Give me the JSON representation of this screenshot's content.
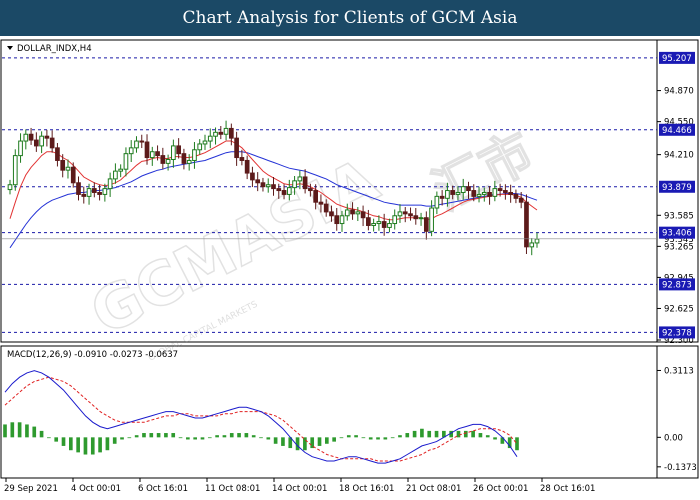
{
  "banner": {
    "title": "Chart Analysis for Clients of GCM Asia"
  },
  "watermark": {
    "main": "GCMASIA",
    "sub": "GLOBAL CAPITAL MARKETS",
    "right": "汇市"
  },
  "colors": {
    "banner_bg": "#1b4966",
    "bull": "#1e7b1e",
    "bear": "#5c1a1a",
    "ma_fast": "#e23333",
    "ma_slow": "#2533d6",
    "level_line": "#1a1aa8",
    "level_tag": "#1a1ab4",
    "macd_line": "#1a1acc",
    "signal_line": "#e02020",
    "histogram": "#2e9a2e"
  },
  "chart_data": [
    {
      "type": "candlestick",
      "title": "DOLLAR_INDX,H4",
      "menu_icon": "triangle-down-icon",
      "y_ticks": [
        "94.870",
        "94.550",
        "94.210",
        "93.585",
        "93.265",
        "92.945",
        "92.625",
        "92.300"
      ],
      "ylim": [
        92.3,
        95.35
      ],
      "x_ticks": [
        "29 Sep 2021",
        "4 Oct 00:01",
        "6 Oct 16:01",
        "11 Oct 08:01",
        "14 Oct 00:01",
        "18 Oct 16:01",
        "21 Oct 08:01",
        "26 Oct 00:01",
        "28 Oct 16:01"
      ],
      "levels": [
        {
          "value": "95.207",
          "tag": true
        },
        {
          "value": "94.466",
          "tag": true
        },
        {
          "value": "93.879",
          "tag": true
        },
        {
          "value": "93.406",
          "tag": true
        },
        {
          "value": "92.873",
          "tag": true
        },
        {
          "value": "92.378",
          "tag": true
        }
      ],
      "current_price": "93.343",
      "closes": [
        93.9,
        94.2,
        94.35,
        94.42,
        94.36,
        94.3,
        94.4,
        94.38,
        94.28,
        94.15,
        94.05,
        94.08,
        93.92,
        93.8,
        93.78,
        93.86,
        93.82,
        93.8,
        93.86,
        93.96,
        94.04,
        94.06,
        94.22,
        94.28,
        94.35,
        94.34,
        94.18,
        94.24,
        94.2,
        94.12,
        94.16,
        94.3,
        94.22,
        94.12,
        94.15,
        94.26,
        94.32,
        94.35,
        94.4,
        94.44,
        94.42,
        94.48,
        94.38,
        94.18,
        94.15,
        94.02,
        93.95,
        93.92,
        93.88,
        93.9,
        93.86,
        93.84,
        93.8,
        93.87,
        93.94,
        93.98,
        93.86,
        93.84,
        93.72,
        93.7,
        93.62,
        93.58,
        93.5,
        93.58,
        93.64,
        93.6,
        93.62,
        93.56,
        93.48,
        93.5,
        93.52,
        93.46,
        93.5,
        93.58,
        93.62,
        93.6,
        93.58,
        93.55,
        93.56,
        93.42,
        93.66,
        93.78,
        93.76,
        93.84,
        93.8,
        93.82,
        93.88,
        93.84,
        93.78,
        93.8,
        93.82,
        93.78,
        93.86,
        93.84,
        93.82,
        93.8,
        93.76,
        93.72,
        93.26,
        93.3,
        93.34
      ],
      "ma_fast": [
        93.55,
        93.72,
        93.88,
        94.0,
        94.08,
        94.14,
        94.2,
        94.24,
        94.24,
        94.22,
        94.18,
        94.15,
        94.1,
        94.04,
        93.98,
        93.95,
        93.92,
        93.9,
        93.89,
        93.9,
        93.92,
        93.95,
        94.0,
        94.05,
        94.1,
        94.14,
        94.15,
        94.17,
        94.18,
        94.17,
        94.17,
        94.19,
        94.19,
        94.18,
        94.18,
        94.19,
        94.21,
        94.23,
        94.26,
        94.29,
        94.32,
        94.35,
        94.35,
        94.32,
        94.28,
        94.22,
        94.16,
        94.1,
        94.04,
        94.0,
        93.97,
        93.94,
        93.91,
        93.9,
        93.9,
        93.91,
        93.9,
        93.88,
        93.85,
        93.82,
        93.78,
        93.74,
        93.7,
        93.68,
        93.66,
        93.65,
        93.64,
        93.62,
        93.6,
        93.58,
        93.57,
        93.55,
        93.54,
        93.54,
        93.55,
        93.56,
        93.56,
        93.56,
        93.56,
        93.54,
        93.55,
        93.58,
        93.6,
        93.63,
        93.66,
        93.69,
        93.72,
        93.74,
        93.75,
        93.76,
        93.77,
        93.78,
        93.79,
        93.8,
        93.8,
        93.8,
        93.79,
        93.77,
        93.72,
        93.68,
        93.64
      ],
      "ma_slow": [
        93.25,
        93.33,
        93.41,
        93.49,
        93.56,
        93.62,
        93.67,
        93.71,
        93.74,
        93.76,
        93.78,
        93.8,
        93.81,
        93.82,
        93.82,
        93.83,
        93.84,
        93.84,
        93.85,
        93.86,
        93.87,
        93.89,
        93.91,
        93.93,
        93.96,
        93.99,
        94.01,
        94.03,
        94.05,
        94.06,
        94.08,
        94.09,
        94.1,
        94.11,
        94.12,
        94.13,
        94.14,
        94.15,
        94.17,
        94.19,
        94.21,
        94.23,
        94.24,
        94.24,
        94.24,
        94.23,
        94.21,
        94.19,
        94.17,
        94.15,
        94.13,
        94.11,
        94.09,
        94.07,
        94.06,
        94.05,
        94.04,
        94.02,
        94.0,
        93.98,
        93.96,
        93.93,
        93.9,
        93.88,
        93.86,
        93.84,
        93.82,
        93.8,
        93.78,
        93.76,
        93.74,
        93.72,
        93.71,
        93.7,
        93.69,
        93.69,
        93.69,
        93.69,
        93.69,
        93.68,
        93.68,
        93.69,
        93.7,
        93.71,
        93.72,
        93.73,
        93.74,
        93.75,
        93.76,
        93.77,
        93.78,
        93.79,
        93.8,
        93.8,
        93.81,
        93.81,
        93.81,
        93.8,
        93.78,
        93.76,
        93.74
      ]
    },
    {
      "type": "line",
      "title": "MACD(12,26,9) -0.0910 -0.0273 -0.0637",
      "y_ticks": [
        "0.3113",
        "0.00",
        "-0.1373"
      ],
      "ylim": [
        -0.18,
        0.36
      ],
      "series": [
        {
          "name": "MACD",
          "values": [
            0.21,
            0.25,
            0.28,
            0.3,
            0.31,
            0.3,
            0.28,
            0.25,
            0.22,
            0.18,
            0.14,
            0.1,
            0.07,
            0.05,
            0.04,
            0.05,
            0.06,
            0.07,
            0.08,
            0.09,
            0.1,
            0.11,
            0.12,
            0.12,
            0.11,
            0.1,
            0.09,
            0.09,
            0.1,
            0.11,
            0.12,
            0.13,
            0.14,
            0.14,
            0.13,
            0.12,
            0.1,
            0.07,
            0.04,
            0.0,
            -0.04,
            -0.07,
            -0.09,
            -0.1,
            -0.11,
            -0.11,
            -0.1,
            -0.09,
            -0.09,
            -0.1,
            -0.11,
            -0.12,
            -0.12,
            -0.11,
            -0.1,
            -0.08,
            -0.06,
            -0.04,
            -0.03,
            -0.02,
            0.0,
            0.02,
            0.04,
            0.05,
            0.06,
            0.06,
            0.05,
            0.03,
            0.0,
            -0.04,
            -0.09
          ]
        },
        {
          "name": "Signal",
          "values": [
            0.15,
            0.18,
            0.21,
            0.24,
            0.26,
            0.27,
            0.28,
            0.27,
            0.26,
            0.24,
            0.21,
            0.18,
            0.15,
            0.12,
            0.1,
            0.08,
            0.07,
            0.07,
            0.07,
            0.07,
            0.08,
            0.09,
            0.1,
            0.1,
            0.11,
            0.11,
            0.1,
            0.1,
            0.1,
            0.1,
            0.11,
            0.11,
            0.12,
            0.12,
            0.12,
            0.12,
            0.11,
            0.1,
            0.08,
            0.05,
            0.02,
            -0.01,
            -0.04,
            -0.06,
            -0.08,
            -0.09,
            -0.1,
            -0.1,
            -0.1,
            -0.1,
            -0.1,
            -0.11,
            -0.11,
            -0.11,
            -0.11,
            -0.1,
            -0.09,
            -0.08,
            -0.06,
            -0.05,
            -0.03,
            -0.01,
            0.01,
            0.02,
            0.03,
            0.04,
            0.04,
            0.04,
            0.03,
            0.01,
            -0.03
          ]
        },
        {
          "name": "Histogram",
          "values": [
            0.06,
            0.07,
            0.07,
            0.06,
            0.05,
            0.03,
            0.0,
            -0.02,
            -0.04,
            -0.06,
            -0.07,
            -0.08,
            -0.08,
            -0.07,
            -0.06,
            -0.03,
            -0.01,
            0.0,
            0.01,
            0.02,
            0.02,
            0.02,
            0.02,
            0.02,
            0.0,
            -0.01,
            -0.01,
            -0.01,
            0.0,
            0.01,
            0.01,
            0.02,
            0.02,
            0.02,
            0.01,
            0.0,
            -0.01,
            -0.03,
            -0.04,
            -0.05,
            -0.06,
            -0.06,
            -0.05,
            -0.04,
            -0.03,
            -0.02,
            0.0,
            0.01,
            0.01,
            0.0,
            -0.01,
            -0.01,
            -0.01,
            0.0,
            0.01,
            0.02,
            0.03,
            0.04,
            0.03,
            0.03,
            0.03,
            0.03,
            0.03,
            0.03,
            0.03,
            0.02,
            0.01,
            -0.01,
            -0.03,
            -0.05,
            -0.06
          ]
        }
      ]
    }
  ]
}
